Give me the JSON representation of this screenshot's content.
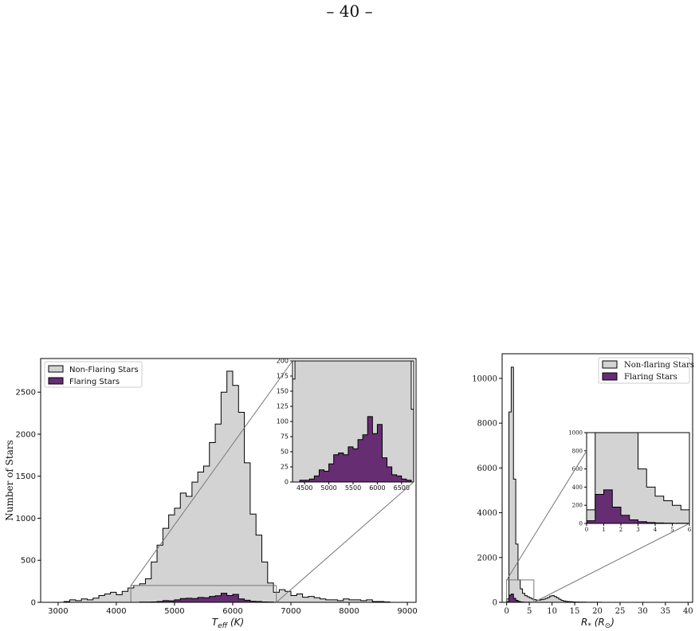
{
  "page_number": "– 40 –",
  "colors": {
    "non_flaring": "#d3d3d3",
    "flaring": "#662d72",
    "outline": "#000000",
    "zoom_lines": "#777777"
  },
  "chart_data": [
    {
      "type": "histogram",
      "xlabel_main": "T",
      "xlabel_sub": "eff",
      "xlabel_unit": "(K)",
      "ylabel": "Number of Stars",
      "xlim": [
        2700,
        9150
      ],
      "ylim": [
        0,
        2900
      ],
      "xticks": [
        3000,
        4000,
        5000,
        6000,
        7000,
        8000,
        9000
      ],
      "yticks": [
        0,
        500,
        1000,
        1500,
        2000,
        2500
      ],
      "legend_position": "upper-left",
      "bin_width": 100,
      "bin_start": 3000,
      "series": [
        {
          "name": "Non-Flaring Stars",
          "values": [
            0,
            10,
            30,
            20,
            40,
            30,
            50,
            80,
            100,
            120,
            90,
            130,
            170,
            200,
            220,
            280,
            480,
            680,
            880,
            1040,
            1120,
            1300,
            1260,
            1430,
            1550,
            1620,
            1900,
            2120,
            2500,
            2750,
            2580,
            2260,
            1660,
            1050,
            800,
            480,
            230,
            120,
            150,
            130,
            80,
            100,
            60,
            70,
            55,
            40,
            30,
            30,
            20,
            40,
            30,
            30,
            20,
            30,
            10,
            10,
            5,
            0,
            0,
            0
          ]
        },
        {
          "name": "Flaring Stars",
          "values": [
            0,
            0,
            0,
            0,
            0,
            0,
            0,
            0,
            0,
            0,
            0,
            0,
            0,
            0,
            3,
            3,
            5,
            10,
            20,
            18,
            30,
            45,
            48,
            45,
            58,
            55,
            70,
            78,
            108,
            80,
            95,
            40,
            25,
            12,
            10,
            5,
            3,
            0,
            0,
            0,
            0,
            0,
            0,
            0,
            0,
            0,
            0,
            0,
            0,
            0,
            0,
            0,
            0,
            0,
            0,
            0,
            0,
            0,
            0,
            0
          ]
        }
      ],
      "zoom_box": {
        "x": [
          4250,
          6750
        ],
        "y": [
          0,
          200
        ]
      },
      "inset": {
        "xlim": [
          4250,
          6750
        ],
        "ylim": [
          0,
          200
        ],
        "xticks": [
          4500,
          5000,
          5500,
          6000,
          6500
        ],
        "yticks": [
          0,
          25,
          50,
          75,
          100,
          125,
          150,
          175,
          200
        ]
      }
    },
    {
      "type": "histogram",
      "xlabel_main": "R",
      "xlabel_sub": "*",
      "xlabel_unit": "(R",
      "xlabel_unit_sub": "⊙",
      "xlabel_unit_close": ")",
      "xlim": [
        -1,
        41
      ],
      "ylim": [
        0,
        11100
      ],
      "xticks": [
        0,
        5,
        10,
        15,
        20,
        25,
        30,
        35,
        40
      ],
      "yticks": [
        0,
        2000,
        4000,
        6000,
        8000,
        10000
      ],
      "legend_position": "upper-right",
      "bin_width": 0.5,
      "bin_start": 0,
      "series": [
        {
          "name": "Non-flaring Stars",
          "values": [
            150,
            8500,
            10500,
            5500,
            2600,
            1000,
            600,
            400,
            300,
            250,
            200,
            150,
            120,
            100,
            100,
            120,
            140,
            180,
            220,
            280,
            300,
            260,
            200,
            140,
            90,
            60,
            40,
            30,
            25,
            20,
            15,
            12,
            10,
            10,
            8,
            6,
            5,
            5,
            4,
            4,
            3,
            3,
            2,
            2,
            2,
            2,
            2,
            2,
            2,
            2,
            1,
            1,
            1,
            1,
            1,
            1,
            1,
            1,
            1,
            1,
            1,
            1,
            1,
            1,
            1,
            1,
            1,
            1,
            1,
            1,
            1,
            1,
            1,
            1,
            1,
            1,
            1,
            1,
            1,
            1
          ]
        },
        {
          "name": "Flaring Stars",
          "values": [
            30,
            320,
            370,
            180,
            90,
            40,
            20,
            10,
            5,
            3,
            2,
            2,
            1,
            1,
            1,
            1,
            1,
            1,
            1,
            1,
            1,
            0,
            0,
            0,
            0,
            0,
            0,
            0,
            0,
            0,
            0,
            0,
            0,
            0,
            0,
            0,
            0,
            0,
            0,
            0,
            0,
            0,
            0,
            0,
            0,
            0,
            0,
            0,
            0,
            0,
            0,
            0,
            0,
            0,
            0,
            0,
            0,
            0,
            0,
            0,
            0,
            0,
            0,
            0,
            0,
            0,
            0,
            0,
            0,
            0,
            0,
            0,
            0,
            0,
            0,
            0,
            0,
            0,
            0,
            0
          ]
        }
      ],
      "zoom_box": {
        "x": [
          0,
          6
        ],
        "y": [
          0,
          1000
        ]
      },
      "inset": {
        "xlim": [
          0,
          6
        ],
        "ylim": [
          0,
          1000
        ],
        "xticks": [
          0,
          1,
          2,
          3,
          4,
          5,
          6
        ],
        "yticks": [
          0,
          200,
          400,
          600,
          800,
          1000
        ]
      }
    }
  ]
}
